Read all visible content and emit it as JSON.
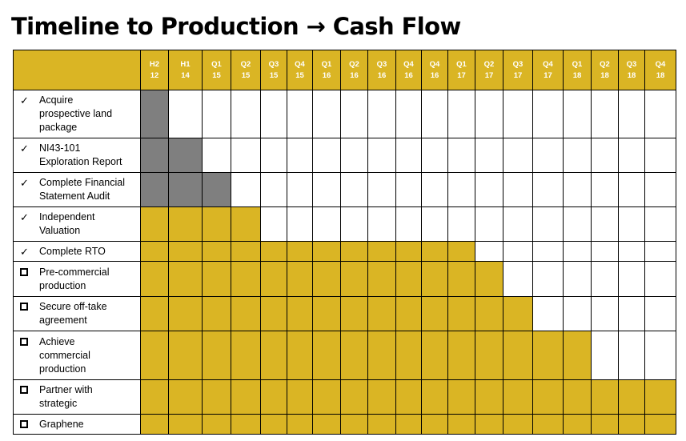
{
  "title": "Timeline to Production → Cash Flow",
  "colors": {
    "gold": "#DAB524",
    "grey": "#7F7F7F",
    "white": "#FFFFFF"
  },
  "periods": [
    [
      "H2",
      "12"
    ],
    [
      "H1",
      "14"
    ],
    [
      "Q1",
      "15"
    ],
    [
      "Q2",
      "15"
    ],
    [
      "Q3",
      "15"
    ],
    [
      "Q4",
      "15"
    ],
    [
      "Q1",
      "16"
    ],
    [
      "Q2",
      "16"
    ],
    [
      "Q3",
      "16"
    ],
    [
      "Q4",
      "16"
    ],
    [
      "Q4",
      "16"
    ],
    [
      "Q1",
      "17"
    ],
    [
      "Q2",
      "17"
    ],
    [
      "Q3",
      "17"
    ],
    [
      "Q4",
      "17"
    ],
    [
      "Q1",
      "18"
    ],
    [
      "Q2",
      "18"
    ],
    [
      "Q3",
      "18"
    ],
    [
      "Q4",
      "18"
    ]
  ],
  "tasks": [
    {
      "status": "completed",
      "icon": "checkmark-icon",
      "mark": "✓",
      "lines": [
        "Acquire",
        "prospective land",
        "package"
      ],
      "grey": 1,
      "gold": 0
    },
    {
      "status": "completed",
      "icon": "checkmark-icon",
      "mark": "✓",
      "lines": [
        "NI43-101",
        "Exploration Report"
      ],
      "grey": 2,
      "gold": 0
    },
    {
      "status": "completed",
      "icon": "checkmark-icon",
      "mark": "✓",
      "lines": [
        "Complete Financial",
        "Statement Audit"
      ],
      "grey": 3,
      "gold": 0
    },
    {
      "status": "completed",
      "icon": "checkmark-icon",
      "mark": "✓",
      "lines": [
        "Independent",
        "Valuation"
      ],
      "grey": 0,
      "gold": 4
    },
    {
      "status": "completed",
      "icon": "checkmark-icon",
      "mark": "✓",
      "lines": [
        "Complete RTO"
      ],
      "grey": 0,
      "gold": 12
    },
    {
      "status": "pending",
      "icon": "empty-checkbox-icon",
      "mark": "",
      "lines": [
        "Pre-commercial",
        "production"
      ],
      "grey": 0,
      "gold": 13
    },
    {
      "status": "pending",
      "icon": "empty-checkbox-icon",
      "mark": "",
      "lines": [
        "Secure off-take",
        "agreement"
      ],
      "grey": 0,
      "gold": 14
    },
    {
      "status": "pending",
      "icon": "empty-checkbox-icon",
      "mark": "",
      "lines": [
        "Achieve",
        "commercial",
        "production"
      ],
      "grey": 0,
      "gold": 16
    },
    {
      "status": "pending",
      "icon": "empty-checkbox-icon",
      "mark": "",
      "lines": [
        "Partner with",
        "strategic"
      ],
      "grey": 0,
      "gold": 19
    },
    {
      "status": "pending",
      "icon": "empty-checkbox-icon",
      "mark": "",
      "lines": [
        "Graphene"
      ],
      "grey": 0,
      "gold": 19
    }
  ]
}
